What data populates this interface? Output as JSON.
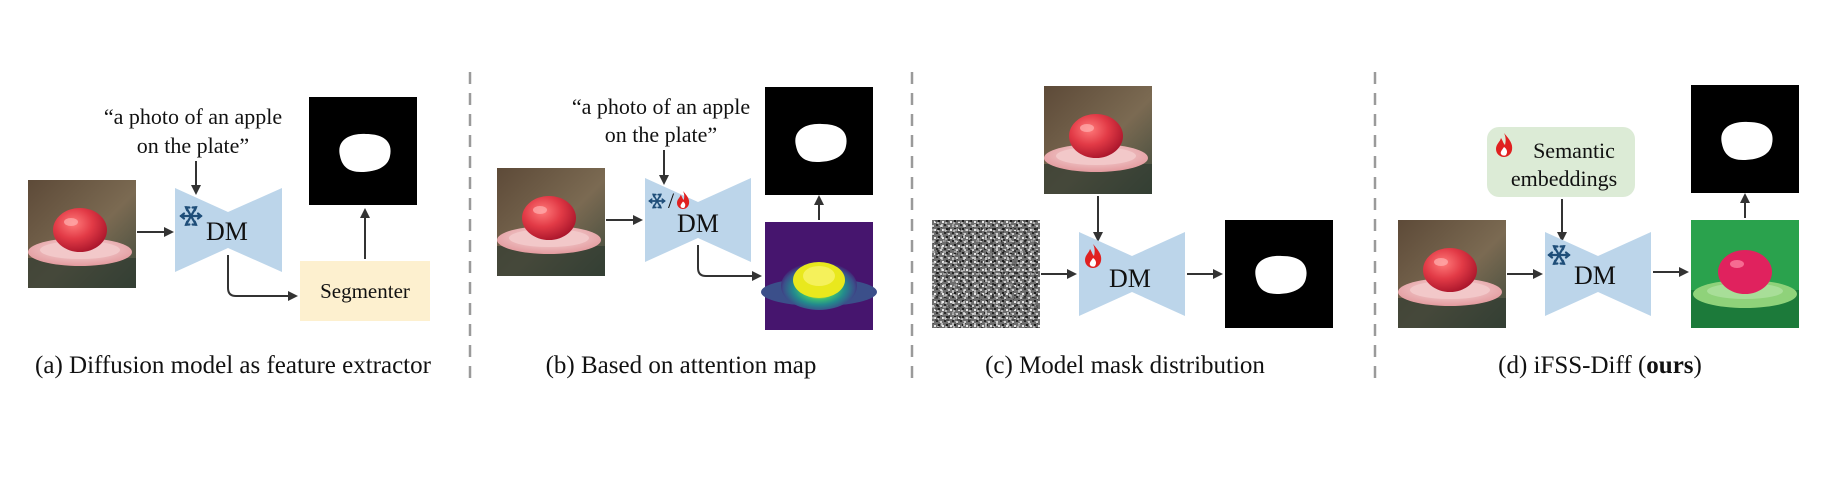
{
  "panels": {
    "a": {
      "caption": "(a) Diffusion model as feature extractor",
      "prompt_line1": "“a photo of an apple",
      "prompt_line2": "on the plate”",
      "dm_label": "DM",
      "segmenter_label": "Segmenter"
    },
    "b": {
      "caption": "(b) Based on attention map",
      "prompt_line1": "“a photo of an apple",
      "prompt_line2": "on the plate”",
      "dm_label": "DM",
      "slash": "/"
    },
    "c": {
      "caption": "(c) Model mask distribution",
      "dm_label": "DM"
    },
    "d": {
      "caption_main": "(d) iFSS-Diff (",
      "caption_bold": "ours",
      "caption_end": ")",
      "embed_line1": "Semantic",
      "embed_line2": "embeddings",
      "dm_label": "DM"
    }
  },
  "icons": {
    "frozen": "snowflake-icon",
    "trainable": "fire-icon"
  },
  "colors": {
    "dm_fill": "#bcd5ea",
    "segmenter_fill": "#fdf0cf",
    "embedding_fill": "#dcebd6",
    "arrow": "#333333",
    "separator": "#9a9a9a",
    "snowflake": "#1f4e79",
    "fire": "#e02020"
  }
}
